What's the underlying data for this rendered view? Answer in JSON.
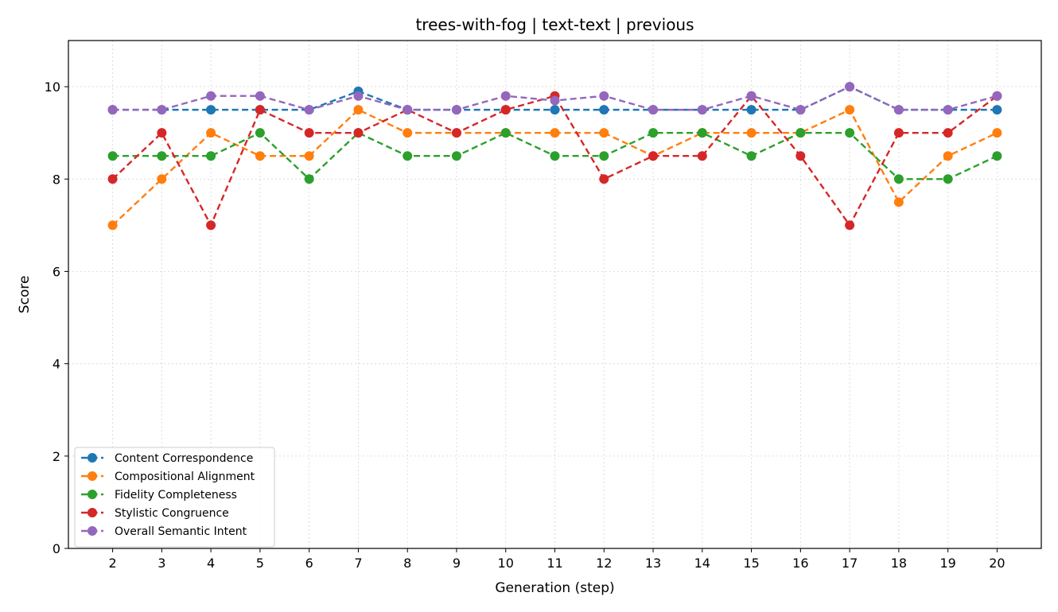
{
  "chart_data": {
    "type": "line",
    "title": "trees-with-fog | text-text | previous",
    "xlabel": "Generation (step)",
    "ylabel": "Score",
    "x": [
      2,
      3,
      4,
      5,
      6,
      7,
      8,
      9,
      10,
      11,
      12,
      13,
      14,
      15,
      16,
      17,
      18,
      19,
      20
    ],
    "xlim": [
      1.1,
      20.9
    ],
    "ylim": [
      0,
      11
    ],
    "yticks": [
      0,
      2,
      4,
      6,
      8,
      10
    ],
    "grid": true,
    "legend_position": "lower-left",
    "series": [
      {
        "name": "Content Correspondence",
        "color": "#1f77b4",
        "values": [
          9.5,
          9.5,
          9.5,
          9.5,
          9.5,
          9.9,
          9.5,
          9.5,
          9.5,
          9.5,
          9.5,
          9.5,
          9.5,
          9.5,
          9.5,
          10.0,
          9.5,
          9.5,
          9.5
        ]
      },
      {
        "name": "Compositional Alignment",
        "color": "#ff7f0e",
        "values": [
          7.0,
          8.0,
          9.0,
          8.5,
          8.5,
          9.5,
          9.0,
          9.0,
          9.0,
          9.0,
          9.0,
          8.5,
          9.0,
          9.0,
          9.0,
          9.5,
          7.5,
          8.5,
          9.0
        ]
      },
      {
        "name": "Fidelity Completeness",
        "color": "#2ca02c",
        "values": [
          8.5,
          8.5,
          8.5,
          9.0,
          8.0,
          9.0,
          8.5,
          8.5,
          9.0,
          8.5,
          8.5,
          9.0,
          9.0,
          8.5,
          9.0,
          9.0,
          8.0,
          8.0,
          8.5
        ]
      },
      {
        "name": "Stylistic Congruence",
        "color": "#d62728",
        "values": [
          8.0,
          9.0,
          7.0,
          9.5,
          9.0,
          9.0,
          9.5,
          9.0,
          9.5,
          9.8,
          8.0,
          8.5,
          8.5,
          9.8,
          8.5,
          7.0,
          9.0,
          9.0,
          9.8
        ]
      },
      {
        "name": "Overall Semantic Intent",
        "color": "#9467bd",
        "values": [
          9.5,
          9.5,
          9.8,
          9.8,
          9.5,
          9.8,
          9.5,
          9.5,
          9.8,
          9.7,
          9.8,
          9.5,
          9.5,
          9.8,
          9.5,
          10.0,
          9.5,
          9.5,
          9.8
        ]
      }
    ]
  }
}
